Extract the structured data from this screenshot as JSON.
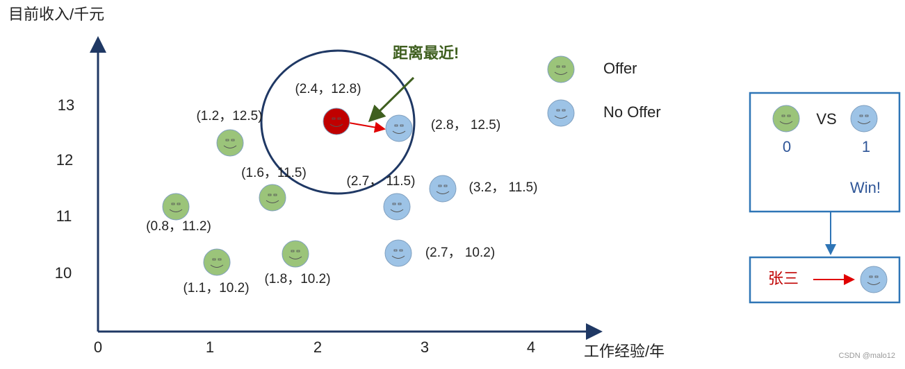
{
  "axes": {
    "y_label": "目前收入/千元",
    "x_label": "工作经验/年",
    "y_ticks": [
      "13",
      "12",
      "11",
      "10"
    ],
    "x_ticks": [
      "0",
      "1",
      "2",
      "3",
      "4"
    ]
  },
  "points": [
    {
      "label": "(1.2，12.5)",
      "color": "#9bc47a"
    },
    {
      "label": "(1.6，11.5)",
      "color": "#9bc47a"
    },
    {
      "label": "(0.8，11.2)",
      "color": "#9bc47a"
    },
    {
      "label": "(1.1，10.2)",
      "color": "#9bc47a"
    },
    {
      "label": "(1.8，10.2)",
      "color": "#9bc47a"
    },
    {
      "label": "(2.8，  12.5)",
      "color": "#9dc3e6"
    },
    {
      "label": "(2.7，  11.5)",
      "color": "#9dc3e6"
    },
    {
      "label": "(3.2，  11.5)",
      "color": "#9dc3e6"
    },
    {
      "label": "(2.7，  10.2)",
      "color": "#9dc3e6"
    },
    {
      "label": "(2.4，12.8)",
      "color": "#c00000"
    }
  ],
  "annotation": "距离最近!",
  "legend": [
    {
      "name": "Offer",
      "color": "#9bc47a"
    },
    {
      "name": "No Offer",
      "color": "#9dc3e6"
    }
  ],
  "vote_box": {
    "left_color": "#9bc47a",
    "right_color": "#9dc3e6",
    "vs": "VS",
    "left_count": "0",
    "right_count": "1",
    "result": "Win!"
  },
  "result_box": {
    "name": "张三",
    "color": "#9dc3e6"
  },
  "watermark": "CSDN @malo12"
}
